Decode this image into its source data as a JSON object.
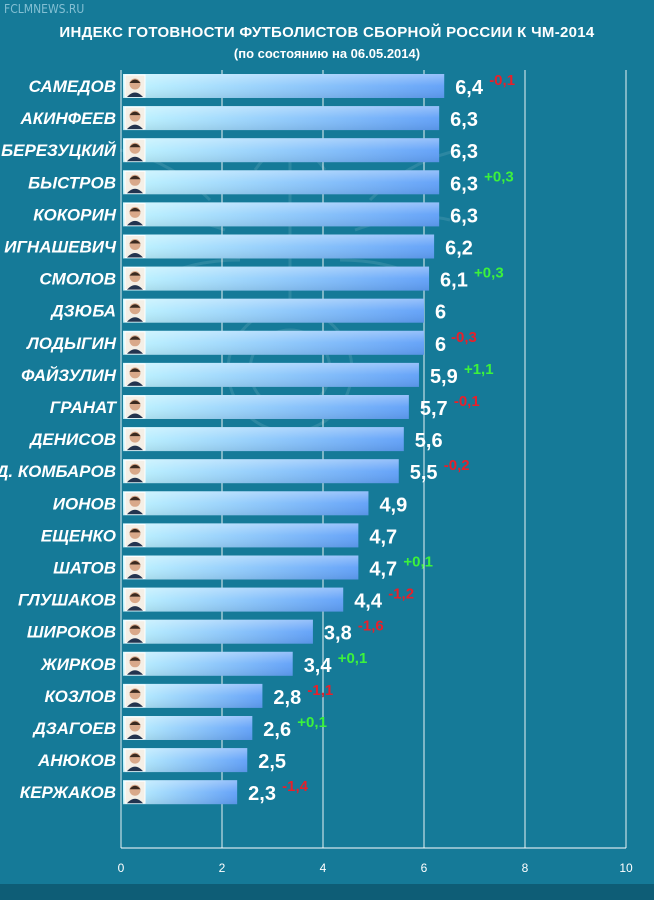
{
  "watermark": "FCLMNEWS.RU",
  "colors": {
    "background": "#157a98",
    "bar_start": "#bff5ff",
    "bar_end": "#5f9ff8",
    "positive": "#3cf23c",
    "negative": "#e8202a",
    "gridline": "#ffffff"
  },
  "chart_data": {
    "type": "bar",
    "orientation": "horizontal",
    "title": "ИНДЕКС ГОТОВНОСТИ ФУТБОЛИСТОВ СБОРНОЙ РОССИИ К ЧМ-2014",
    "subtitle": "(по состоянию на 06.05.2014)",
    "xlim": [
      0,
      10
    ],
    "xticks": [
      "0",
      "2",
      "4",
      "6",
      "8",
      "10"
    ],
    "grid": true,
    "categories": [
      "САМЕДОВ",
      "АКИНФЕЕВ",
      "В. БЕРЕЗУЦКИЙ",
      "БЫСТРОВ",
      "КОКОРИН",
      "ИГНАШЕВИЧ",
      "СМОЛОВ",
      "ДЗЮБА",
      "ЛОДЫГИН",
      "ФАЙЗУЛИН",
      "ГРАНАТ",
      "ДЕНИСОВ",
      "Д. КОМБАРОВ",
      "ИОНОВ",
      "ЕЩЕНКО",
      "ШАТОВ",
      "ГЛУШАКОВ",
      "ШИРОКОВ",
      "ЖИРКОВ",
      "КОЗЛОВ",
      "ДЗАГОЕВ",
      "АНЮКОВ",
      "КЕРЖАКОВ"
    ],
    "values": [
      6.4,
      6.3,
      6.3,
      6.3,
      6.3,
      6.2,
      6.1,
      6,
      6,
      5.9,
      5.7,
      5.6,
      5.5,
      4.9,
      4.7,
      4.7,
      4.4,
      3.8,
      3.4,
      2.8,
      2.6,
      2.5,
      2.3
    ],
    "value_labels": [
      "6,4",
      "6,3",
      "6,3",
      "6,3",
      "6,3",
      "6,2",
      "6,1",
      "6",
      "6",
      "5,9",
      "5,7",
      "5,6",
      "5,5",
      "4,9",
      "4,7",
      "4,7",
      "4,4",
      "3,8",
      "3,4",
      "2,8",
      "2,6",
      "2,5",
      "2,3"
    ],
    "changes": [
      "-0,1",
      "",
      "",
      "+0,3",
      "",
      "",
      "+0,3",
      "",
      "-0,3",
      "+1,1",
      "-0,1",
      "",
      "-0,2",
      "",
      "",
      "+0,1",
      "-1,2",
      "-1,6",
      "+0,1",
      "-1,1",
      "+0,1",
      "",
      "-1,4"
    ]
  }
}
